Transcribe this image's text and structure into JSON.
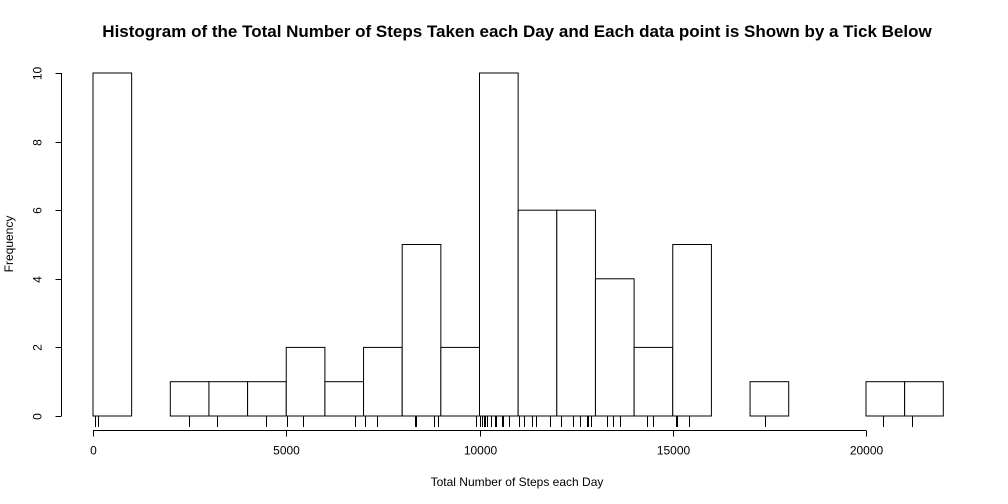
{
  "chart_data": {
    "type": "bar",
    "subtype": "histogram",
    "title": "Histogram of the Total Number of Steps Taken each Day and Each data point is Shown by a Tick Below",
    "xlabel": "Total Number of Steps each Day",
    "ylabel": "Frequency",
    "xlim": [
      0,
      22000
    ],
    "ylim": [
      0,
      10
    ],
    "x_axis_span": [
      0,
      20000
    ],
    "x_ticks": [
      0,
      5000,
      10000,
      15000,
      20000
    ],
    "y_ticks": [
      0,
      2,
      4,
      6,
      8,
      10
    ],
    "bin_width": 1000,
    "bins": [
      {
        "start": 0,
        "end": 1000,
        "count": 10
      },
      {
        "start": 1000,
        "end": 2000,
        "count": 0
      },
      {
        "start": 2000,
        "end": 3000,
        "count": 1
      },
      {
        "start": 3000,
        "end": 4000,
        "count": 1
      },
      {
        "start": 4000,
        "end": 5000,
        "count": 1
      },
      {
        "start": 5000,
        "end": 6000,
        "count": 2
      },
      {
        "start": 6000,
        "end": 7000,
        "count": 1
      },
      {
        "start": 7000,
        "end": 8000,
        "count": 2
      },
      {
        "start": 8000,
        "end": 9000,
        "count": 5
      },
      {
        "start": 9000,
        "end": 10000,
        "count": 2
      },
      {
        "start": 10000,
        "end": 11000,
        "count": 10
      },
      {
        "start": 11000,
        "end": 12000,
        "count": 6
      },
      {
        "start": 12000,
        "end": 13000,
        "count": 6
      },
      {
        "start": 13000,
        "end": 14000,
        "count": 4
      },
      {
        "start": 14000,
        "end": 15000,
        "count": 2
      },
      {
        "start": 15000,
        "end": 16000,
        "count": 5
      },
      {
        "start": 16000,
        "end": 17000,
        "count": 0
      },
      {
        "start": 17000,
        "end": 18000,
        "count": 1
      },
      {
        "start": 18000,
        "end": 19000,
        "count": 0
      },
      {
        "start": 19000,
        "end": 20000,
        "count": 0
      },
      {
        "start": 20000,
        "end": 21000,
        "count": 1
      },
      {
        "start": 21000,
        "end": 22000,
        "count": 1
      }
    ],
    "rug_values": [
      41,
      126,
      2492,
      3219,
      4472,
      5018,
      5441,
      6778,
      7047,
      7336,
      8334,
      8355,
      8821,
      8918,
      9900,
      10000,
      10056,
      10119,
      10139,
      10183,
      10304,
      10395,
      10439,
      10571,
      10600,
      10765,
      11015,
      11162,
      11352,
      11458,
      11829,
      12116,
      12426,
      12608,
      12787,
      12811,
      12883,
      13294,
      13452,
      13646,
      14339,
      14478,
      15084,
      15110,
      15414,
      17382,
      20427,
      21194
    ],
    "grid": false,
    "legend": "none"
  }
}
